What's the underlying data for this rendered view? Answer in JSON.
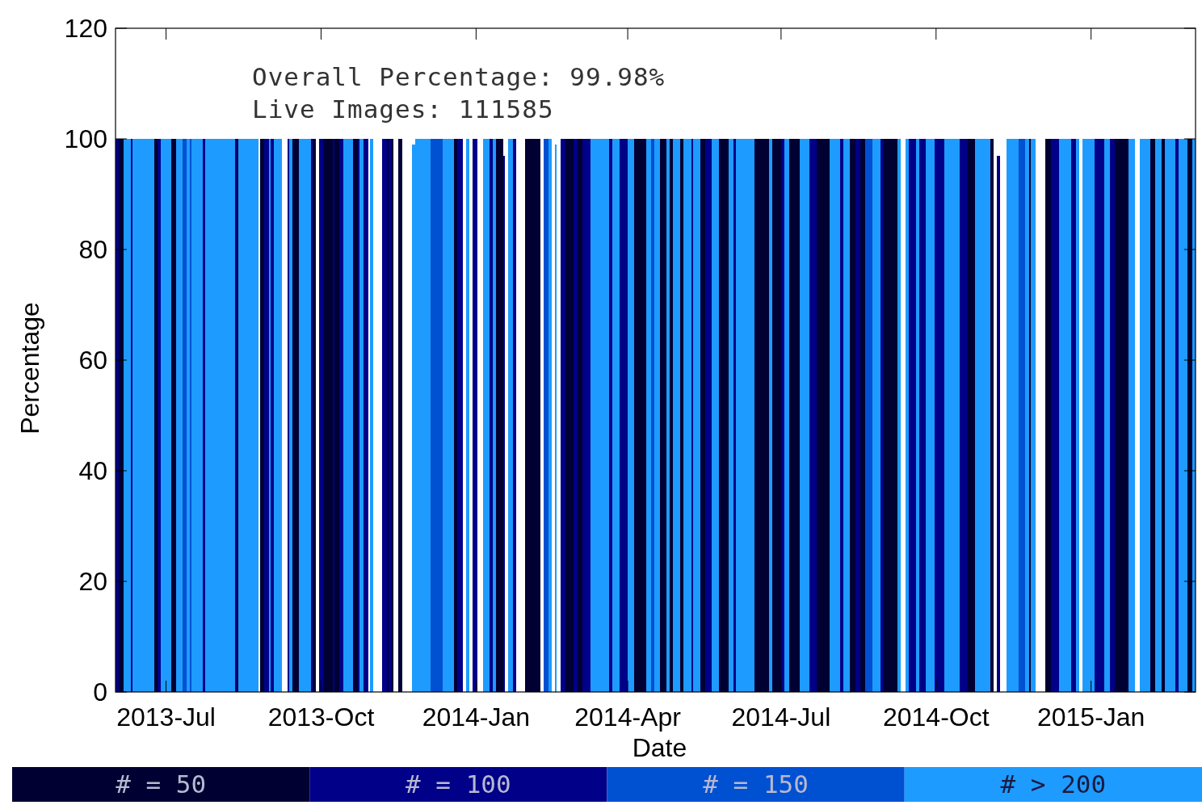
{
  "chart_data": {
    "type": "histogram",
    "xlabel": "Date",
    "ylabel": "Percentage",
    "annotations": [
      "Overall Percentage: 99.98%",
      "Live Images: 111585"
    ],
    "xlim": [
      "2013-06-01",
      "2015-03-04"
    ],
    "ylim": [
      0,
      120
    ],
    "xticks": [
      {
        "value": "2013-07-01",
        "label": "2013-Jul"
      },
      {
        "value": "2013-10-01",
        "label": "2013-Oct"
      },
      {
        "value": "2014-01-01",
        "label": "2014-Jan"
      },
      {
        "value": "2014-04-01",
        "label": "2014-Apr"
      },
      {
        "value": "2014-07-01",
        "label": "2014-Jul"
      },
      {
        "value": "2014-10-01",
        "label": "2014-Oct"
      },
      {
        "value": "2015-01-01",
        "label": "2015-Jan"
      }
    ],
    "yticks": [
      0,
      20,
      40,
      60,
      80,
      100,
      120
    ],
    "legend": "bottom",
    "bins": [
      "2013-06-01",
      "2013-06-03",
      "2013-06-06",
      "2013-06-10",
      "2013-06-11",
      "2013-06-24",
      "2013-06-26",
      "2013-06-28",
      "2013-07-04",
      "2013-07-07",
      "2013-07-11",
      "2013-07-13",
      "2013-07-15",
      "2013-07-16",
      "2013-07-23",
      "2013-07-24",
      "2013-08-11",
      "2013-08-12",
      "2013-08-13",
      "2013-08-25",
      "2013-08-26",
      "2013-08-28",
      "2013-08-31",
      "2013-09-01",
      "2013-09-03",
      "2013-09-08",
      "2013-09-11",
      "2013-09-12",
      "2013-09-14",
      "2013-09-18",
      "2013-09-25",
      "2013-09-26",
      "2013-09-28",
      "2013-09-30",
      "2013-10-02",
      "2013-10-08",
      "2013-10-09",
      "2013-10-12",
      "2013-10-14",
      "2013-10-20",
      "2013-10-23",
      "2013-10-24",
      "2013-10-26",
      "2013-10-29",
      "2013-10-30",
      "2013-11-01",
      "2013-11-06",
      "2013-11-09",
      "2013-11-10",
      "2013-11-12",
      "2013-11-13",
      "2013-11-16",
      "2013-11-18",
      "2013-11-24",
      "2013-11-26",
      "2013-12-05",
      "2013-12-12",
      "2013-12-19",
      "2013-12-21",
      "2013-12-24",
      "2013-12-26",
      "2013-12-28",
      "2013-12-30",
      "2014-01-02",
      "2014-01-05",
      "2014-01-09",
      "2014-01-11",
      "2014-01-13",
      "2014-01-17",
      "2014-01-18",
      "2014-01-20",
      "2014-01-23",
      "2014-01-25",
      "2014-01-30",
      "2014-02-08",
      "2014-02-10",
      "2014-02-13",
      "2014-02-15",
      "2014-02-17",
      "2014-02-18",
      "2014-02-20",
      "2014-02-23",
      "2014-02-28",
      "2014-03-02",
      "2014-03-05",
      "2014-03-10",
      "2014-03-21",
      "2014-03-23",
      "2014-03-27",
      "2014-04-01",
      "2014-04-05",
      "2014-04-12",
      "2014-04-15",
      "2014-04-17",
      "2014-04-20",
      "2014-04-24",
      "2014-04-26",
      "2014-04-28",
      "2014-05-02",
      "2014-05-04",
      "2014-05-09",
      "2014-05-10",
      "2014-05-14",
      "2014-05-17",
      "2014-05-21",
      "2014-05-25",
      "2014-05-31",
      "2014-06-03",
      "2014-06-04",
      "2014-06-15",
      "2014-06-24",
      "2014-06-26",
      "2014-07-01",
      "2014-07-03",
      "2014-07-06",
      "2014-07-12",
      "2014-07-18",
      "2014-07-22",
      "2014-07-30",
      "2014-08-05",
      "2014-08-07",
      "2014-08-11",
      "2014-08-14",
      "2014-08-17",
      "2014-08-20",
      "2014-08-24",
      "2014-08-29",
      "2014-08-31",
      "2014-09-08",
      "2014-09-10",
      "2014-09-13",
      "2014-09-15",
      "2014-09-19",
      "2014-09-21",
      "2014-09-25",
      "2014-09-30",
      "2014-10-06",
      "2014-10-15",
      "2014-10-20",
      "2014-10-24",
      "2014-11-02",
      "2014-11-04",
      "2014-11-06",
      "2014-11-08",
      "2014-11-12",
      "2014-11-19",
      "2014-11-23",
      "2014-11-25",
      "2014-11-26",
      "2014-11-29",
      "2014-12-05",
      "2014-12-08",
      "2014-12-13",
      "2014-12-20",
      "2014-12-23",
      "2014-12-25",
      "2014-12-27",
      "2015-01-03",
      "2015-01-09",
      "2015-01-12",
      "2015-01-15",
      "2015-01-23",
      "2015-01-27",
      "2015-01-30",
      "2015-02-05",
      "2015-02-08",
      "2015-02-12",
      "2015-02-14",
      "2015-02-20",
      "2015-02-22",
      "2015-02-27",
      "2015-03-02",
      "2015-03-04"
    ],
    "series": [
      {
        "name": "# =  50",
        "color": "#000033",
        "values": [
          null,
          100,
          null,
          null,
          null,
          100,
          null,
          null,
          100,
          null,
          null,
          null,
          null,
          null,
          null,
          null,
          null,
          100,
          null,
          null,
          100,
          null,
          null,
          null,
          null,
          null,
          null,
          null,
          100,
          null,
          null,
          100,
          null,
          null,
          100,
          null,
          100,
          null,
          null,
          100,
          null,
          null,
          null,
          null,
          null,
          null,
          null,
          100,
          null,
          100,
          null,
          100,
          null,
          null,
          null,
          null,
          null,
          100,
          null,
          null,
          null,
          null,
          null,
          null,
          null,
          null,
          null,
          100,
          null,
          null,
          null,
          null,
          null,
          100,
          null,
          null,
          null,
          null,
          null,
          null,
          null,
          100,
          null,
          100,
          null,
          null,
          null,
          null,
          null,
          null,
          100,
          null,
          null,
          null,
          100,
          null,
          100,
          null,
          100,
          null,
          null,
          null,
          100,
          null,
          null,
          100,
          null,
          null,
          null,
          100,
          null,
          100,
          null,
          null,
          100,
          null,
          null,
          100,
          null,
          null,
          null,
          100,
          null,
          100,
          null,
          null,
          null,
          100,
          null,
          null,
          null,
          null,
          null,
          null,
          null,
          null,
          null,
          null,
          100,
          null,
          100,
          null,
          null,
          null,
          null,
          null,
          null,
          100,
          null,
          null,
          100,
          null,
          null,
          null,
          null,
          null,
          null,
          null,
          null,
          null,
          100,
          null,
          null,
          null,
          100,
          null,
          100,
          null,
          null,
          null,
          100,
          null
        ]
      },
      {
        "name": "# = 100",
        "color": "#000088",
        "values": [
          100,
          null,
          null,
          100,
          null,
          null,
          100,
          null,
          null,
          null,
          null,
          null,
          null,
          null,
          100,
          null,
          100,
          null,
          null,
          null,
          null,
          100,
          null,
          100,
          null,
          null,
          100,
          null,
          null,
          null,
          100,
          null,
          null,
          100,
          null,
          100,
          null,
          100,
          null,
          null,
          100,
          null,
          100,
          null,
          null,
          null,
          100,
          null,
          100,
          null,
          null,
          null,
          null,
          null,
          null,
          null,
          null,
          null,
          100,
          null,
          null,
          null,
          100,
          null,
          null,
          100,
          null,
          null,
          97,
          null,
          null,
          100,
          null,
          null,
          null,
          null,
          null,
          null,
          null,
          null,
          100,
          null,
          100,
          null,
          100,
          null,
          100,
          null,
          100,
          null,
          null,
          null,
          null,
          null,
          null,
          null,
          null,
          null,
          null,
          null,
          100,
          null,
          null,
          100,
          null,
          null,
          null,
          100,
          null,
          null,
          null,
          null,
          100,
          null,
          null,
          null,
          100,
          null,
          null,
          100,
          null,
          null,
          100,
          null,
          null,
          null,
          100,
          null,
          null,
          null,
          null,
          100,
          null,
          100,
          null,
          100,
          null,
          100,
          null,
          null,
          null,
          null,
          97,
          null,
          null,
          null,
          null,
          null,
          null,
          null,
          null,
          100,
          null,
          100,
          null,
          null,
          null,
          100,
          null,
          100,
          null,
          null,
          null,
          null,
          null,
          null,
          null,
          null,
          100,
          null,
          null,
          null
        ]
      },
      {
        "name": "# = 150",
        "color": "#0050d2",
        "values": [
          null,
          null,
          null,
          null,
          null,
          null,
          null,
          null,
          null,
          null,
          100,
          null,
          100,
          null,
          null,
          null,
          null,
          null,
          null,
          null,
          null,
          null,
          null,
          null,
          null,
          null,
          null,
          null,
          null,
          null,
          null,
          null,
          null,
          null,
          null,
          null,
          null,
          null,
          null,
          null,
          null,
          null,
          null,
          null,
          null,
          null,
          null,
          null,
          null,
          null,
          null,
          null,
          null,
          null,
          null,
          100,
          null,
          null,
          null,
          null,
          null,
          null,
          null,
          null,
          null,
          null,
          null,
          null,
          null,
          null,
          null,
          null,
          null,
          null,
          null,
          100,
          null,
          null,
          null,
          null,
          null,
          null,
          null,
          null,
          null,
          null,
          null,
          null,
          null,
          null,
          null,
          null,
          100,
          null,
          null,
          null,
          null,
          null,
          null,
          null,
          null,
          null,
          null,
          null,
          null,
          null,
          null,
          null,
          null,
          null,
          null,
          null,
          null,
          null,
          null,
          null,
          null,
          null,
          null,
          null,
          null,
          null,
          null,
          null,
          100,
          null,
          null,
          null,
          null,
          null,
          null,
          null,
          null,
          null,
          null,
          null,
          null,
          null,
          null,
          null,
          null,
          null,
          null,
          null,
          null,
          100,
          null,
          null,
          null,
          null,
          null,
          null,
          null,
          null,
          null,
          null,
          null,
          null,
          null,
          null,
          null,
          null,
          null,
          null,
          null,
          null,
          null,
          null,
          null,
          null,
          null,
          null
        ]
      },
      {
        "name": "# > 200",
        "color": "#1e9bff",
        "values": [
          null,
          null,
          100,
          null,
          100,
          null,
          null,
          100,
          null,
          100,
          null,
          100,
          null,
          100,
          null,
          100,
          null,
          null,
          100,
          null,
          null,
          null,
          100,
          null,
          100,
          null,
          null,
          100,
          null,
          100,
          null,
          null,
          null,
          null,
          null,
          null,
          null,
          null,
          100,
          null,
          null,
          100,
          null,
          null,
          100,
          null,
          null,
          null,
          null,
          null,
          null,
          null,
          null,
          99,
          100,
          null,
          100,
          null,
          null,
          null,
          100,
          null,
          null,
          null,
          100,
          null,
          100,
          null,
          null,
          null,
          100,
          null,
          null,
          null,
          null,
          null,
          100,
          null,
          99,
          null,
          null,
          null,
          null,
          null,
          null,
          100,
          null,
          100,
          null,
          100,
          null,
          100,
          null,
          100,
          null,
          100,
          null,
          100,
          null,
          100,
          null,
          100,
          null,
          null,
          100,
          null,
          100,
          null,
          100,
          null,
          100,
          null,
          null,
          100,
          null,
          100,
          null,
          null,
          100,
          null,
          100,
          null,
          null,
          null,
          null,
          100,
          null,
          null,
          100,
          null,
          100,
          null,
          100,
          null,
          100,
          null,
          100,
          null,
          null,
          100,
          null,
          null,
          null,
          null,
          100,
          null,
          100,
          null,
          100,
          null,
          null,
          null,
          100,
          null,
          100,
          null,
          100,
          null,
          100,
          null,
          null,
          100,
          null,
          100,
          null,
          100,
          null,
          100,
          null,
          100,
          null,
          100
        ]
      }
    ]
  }
}
